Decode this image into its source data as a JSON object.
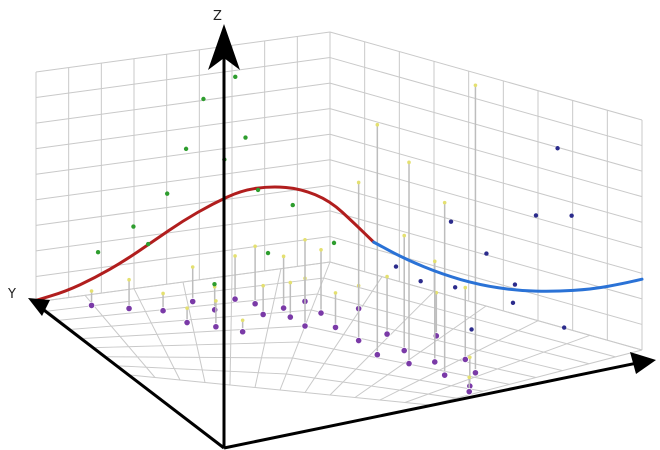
{
  "chart_data": {
    "type": "scatter",
    "title": "",
    "axes": {
      "x": "",
      "y": "Y",
      "z": "Z"
    },
    "ranges": {
      "u": [
        0,
        1
      ],
      "v": [
        0,
        1
      ],
      "z": [
        0,
        1
      ]
    },
    "grid": true,
    "colors": {
      "grid": "#c9c9c9",
      "axis": "#000000",
      "curve_left": "#b11e1e",
      "curve_right": "#2a72d6",
      "points_green": "#2e9d2e",
      "points_navy": "#2b2b8c",
      "base_marker": "#7a3aa7",
      "stem": "#bdbdbd",
      "stem_tip": "#e4e070"
    },
    "curves": [
      {
        "color": "curve_left",
        "points": [
          {
            "x": 0.0,
            "z": 0.01
          },
          {
            "x": 0.05,
            "z": 0.04
          },
          {
            "x": 0.1,
            "z": 0.1
          },
          {
            "x": 0.15,
            "z": 0.18
          },
          {
            "x": 0.2,
            "z": 0.28
          },
          {
            "x": 0.25,
            "z": 0.38
          },
          {
            "x": 0.3,
            "z": 0.46
          },
          {
            "x": 0.35,
            "z": 0.52
          },
          {
            "x": 0.4,
            "z": 0.52
          },
          {
            "x": 0.45,
            "z": 0.48
          },
          {
            "x": 0.5,
            "z": 0.38
          },
          {
            "x": 0.54,
            "z": 0.28
          },
          {
            "x": 0.57,
            "z": 0.2
          }
        ]
      },
      {
        "color": "curve_right",
        "points": [
          {
            "x": 0.57,
            "z": 0.2
          },
          {
            "x": 0.62,
            "z": 0.15
          },
          {
            "x": 0.68,
            "z": 0.12
          },
          {
            "x": 0.74,
            "z": 0.12
          },
          {
            "x": 0.8,
            "z": 0.15
          },
          {
            "x": 0.86,
            "z": 0.21
          },
          {
            "x": 0.92,
            "z": 0.29
          },
          {
            "x": 0.97,
            "z": 0.38
          },
          {
            "x": 1.0,
            "z": 0.44
          }
        ]
      }
    ],
    "floating_points": [
      {
        "u": 0.1,
        "v": 0.1,
        "z": 0.2,
        "color": "points_green"
      },
      {
        "u": 0.16,
        "v": 0.14,
        "z": 0.3,
        "color": "points_green"
      },
      {
        "u": 0.22,
        "v": 0.12,
        "z": 0.42,
        "color": "points_green"
      },
      {
        "u": 0.25,
        "v": 0.28,
        "z": 0.64,
        "color": "points_green"
      },
      {
        "u": 0.28,
        "v": 0.42,
        "z": 0.88,
        "color": "points_green"
      },
      {
        "u": 0.34,
        "v": 0.33,
        "z": 0.94,
        "color": "points_green"
      },
      {
        "u": 0.32,
        "v": 0.22,
        "z": 0.56,
        "color": "points_green"
      },
      {
        "u": 0.38,
        "v": 0.18,
        "z": 0.4,
        "color": "points_green"
      },
      {
        "u": 0.4,
        "v": 0.3,
        "z": 0.15,
        "color": "points_green"
      },
      {
        "u": 0.44,
        "v": 0.12,
        "z": 0.3,
        "color": "points_green"
      },
      {
        "u": 0.3,
        "v": 0.55,
        "z": 0.1,
        "color": "points_green"
      },
      {
        "u": 0.36,
        "v": 0.45,
        "z": 0.7,
        "color": "points_green"
      },
      {
        "u": 0.52,
        "v": 0.3,
        "z": 0.18,
        "color": "points_green"
      },
      {
        "u": 0.18,
        "v": 0.3,
        "z": 0.25,
        "color": "points_green"
      },
      {
        "u": 0.62,
        "v": 0.2,
        "z": 0.12,
        "color": "points_navy"
      },
      {
        "u": 0.66,
        "v": 0.18,
        "z": 0.08,
        "color": "points_navy"
      },
      {
        "u": 0.72,
        "v": 0.2,
        "z": 0.1,
        "color": "points_navy"
      },
      {
        "u": 0.78,
        "v": 0.26,
        "z": 0.3,
        "color": "points_navy"
      },
      {
        "u": 0.84,
        "v": 0.34,
        "z": 0.22,
        "color": "points_navy"
      },
      {
        "u": 0.88,
        "v": 0.36,
        "z": 0.55,
        "color": "points_navy"
      },
      {
        "u": 0.92,
        "v": 0.3,
        "z": 0.08,
        "color": "points_navy"
      },
      {
        "u": 0.95,
        "v": 0.4,
        "z": 0.6,
        "color": "points_navy"
      },
      {
        "u": 0.98,
        "v": 0.7,
        "z": 0.95,
        "color": "points_navy"
      },
      {
        "u": 0.74,
        "v": 0.45,
        "z": 0.45,
        "color": "points_navy"
      },
      {
        "u": 0.86,
        "v": 0.5,
        "z": 0.18,
        "color": "points_navy"
      },
      {
        "u": 0.8,
        "v": 0.62,
        "z": 0.05,
        "color": "points_navy"
      }
    ],
    "stems": [
      {
        "u": 0.08,
        "v": 0.12,
        "h": 0.05
      },
      {
        "u": 0.14,
        "v": 0.2,
        "h": 0.1
      },
      {
        "u": 0.2,
        "v": 0.26,
        "h": 0.06
      },
      {
        "u": 0.26,
        "v": 0.2,
        "h": 0.12
      },
      {
        "u": 0.3,
        "v": 0.3,
        "h": 0.08
      },
      {
        "u": 0.34,
        "v": 0.22,
        "h": 0.15
      },
      {
        "u": 0.38,
        "v": 0.28,
        "h": 0.2
      },
      {
        "u": 0.4,
        "v": 0.38,
        "h": 0.1
      },
      {
        "u": 0.44,
        "v": 0.34,
        "h": 0.18
      },
      {
        "u": 0.46,
        "v": 0.42,
        "h": 0.12
      },
      {
        "u": 0.48,
        "v": 0.3,
        "h": 0.08
      },
      {
        "u": 0.5,
        "v": 0.5,
        "h": 0.3
      },
      {
        "u": 0.52,
        "v": 0.38,
        "h": 0.22
      },
      {
        "u": 0.56,
        "v": 0.46,
        "h": 0.12
      },
      {
        "u": 0.58,
        "v": 0.28,
        "h": 0.08
      },
      {
        "u": 0.62,
        "v": 0.52,
        "h": 0.55
      },
      {
        "u": 0.66,
        "v": 0.42,
        "h": 0.2
      },
      {
        "u": 0.68,
        "v": 0.6,
        "h": 0.8
      },
      {
        "u": 0.72,
        "v": 0.52,
        "h": 0.4
      },
      {
        "u": 0.74,
        "v": 0.34,
        "h": 0.15
      },
      {
        "u": 0.76,
        "v": 0.62,
        "h": 0.7
      },
      {
        "u": 0.8,
        "v": 0.56,
        "h": 0.35
      },
      {
        "u": 0.84,
        "v": 0.48,
        "h": 0.25
      },
      {
        "u": 0.86,
        "v": 0.66,
        "h": 0.6
      },
      {
        "u": 0.9,
        "v": 0.58,
        "h": 1.0
      },
      {
        "u": 0.95,
        "v": 0.72,
        "h": 0.1
      },
      {
        "u": 0.98,
        "v": 0.78,
        "h": 0.05
      },
      {
        "u": 0.24,
        "v": 0.4,
        "h": 0.05
      },
      {
        "u": 0.3,
        "v": 0.46,
        "h": 0.09
      },
      {
        "u": 0.36,
        "v": 0.52,
        "h": 0.04
      }
    ]
  }
}
